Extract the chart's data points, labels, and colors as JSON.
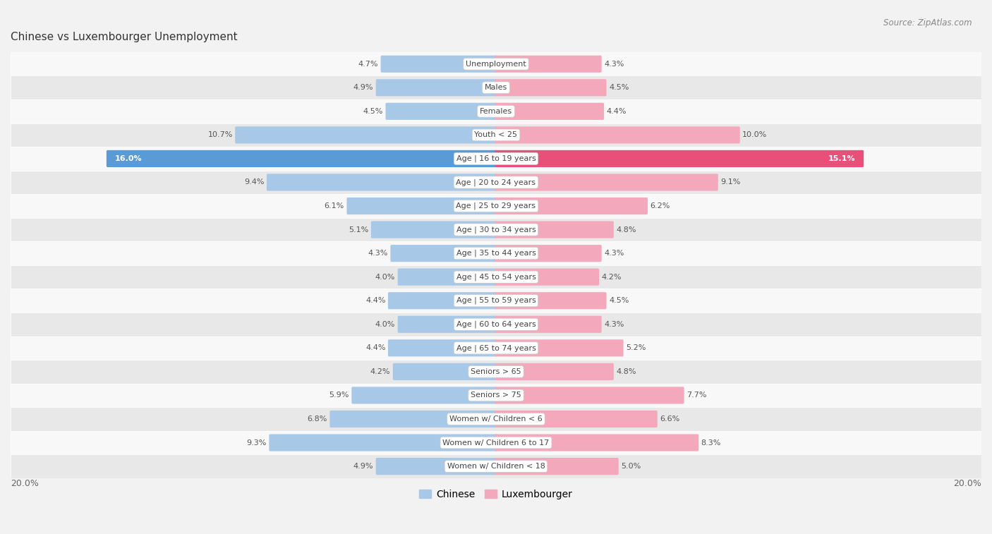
{
  "title": "Chinese vs Luxembourger Unemployment",
  "source": "Source: ZipAtlas.com",
  "categories": [
    "Unemployment",
    "Males",
    "Females",
    "Youth < 25",
    "Age | 16 to 19 years",
    "Age | 20 to 24 years",
    "Age | 25 to 29 years",
    "Age | 30 to 34 years",
    "Age | 35 to 44 years",
    "Age | 45 to 54 years",
    "Age | 55 to 59 years",
    "Age | 60 to 64 years",
    "Age | 65 to 74 years",
    "Seniors > 65",
    "Seniors > 75",
    "Women w/ Children < 6",
    "Women w/ Children 6 to 17",
    "Women w/ Children < 18"
  ],
  "chinese": [
    4.7,
    4.9,
    4.5,
    10.7,
    16.0,
    9.4,
    6.1,
    5.1,
    4.3,
    4.0,
    4.4,
    4.0,
    4.4,
    4.2,
    5.9,
    6.8,
    9.3,
    4.9
  ],
  "luxembourger": [
    4.3,
    4.5,
    4.4,
    10.0,
    15.1,
    9.1,
    6.2,
    4.8,
    4.3,
    4.2,
    4.5,
    4.3,
    5.2,
    4.8,
    7.7,
    6.6,
    8.3,
    5.0
  ],
  "chinese_color": "#a8c8e8",
  "luxembourger_color": "#f4a8bc",
  "chinese_highlight_color": "#5b9bd5",
  "luxembourger_highlight_color": "#e8507a",
  "bg_color": "#f2f2f2",
  "row_bg_light": "#f8f8f8",
  "row_bg_dark": "#e8e8e8",
  "max_val": 20.0,
  "legend_chinese": "Chinese",
  "legend_luxembourger": "Luxembourger",
  "title_fontsize": 11,
  "source_fontsize": 8.5,
  "label_fontsize": 8,
  "value_fontsize": 8
}
